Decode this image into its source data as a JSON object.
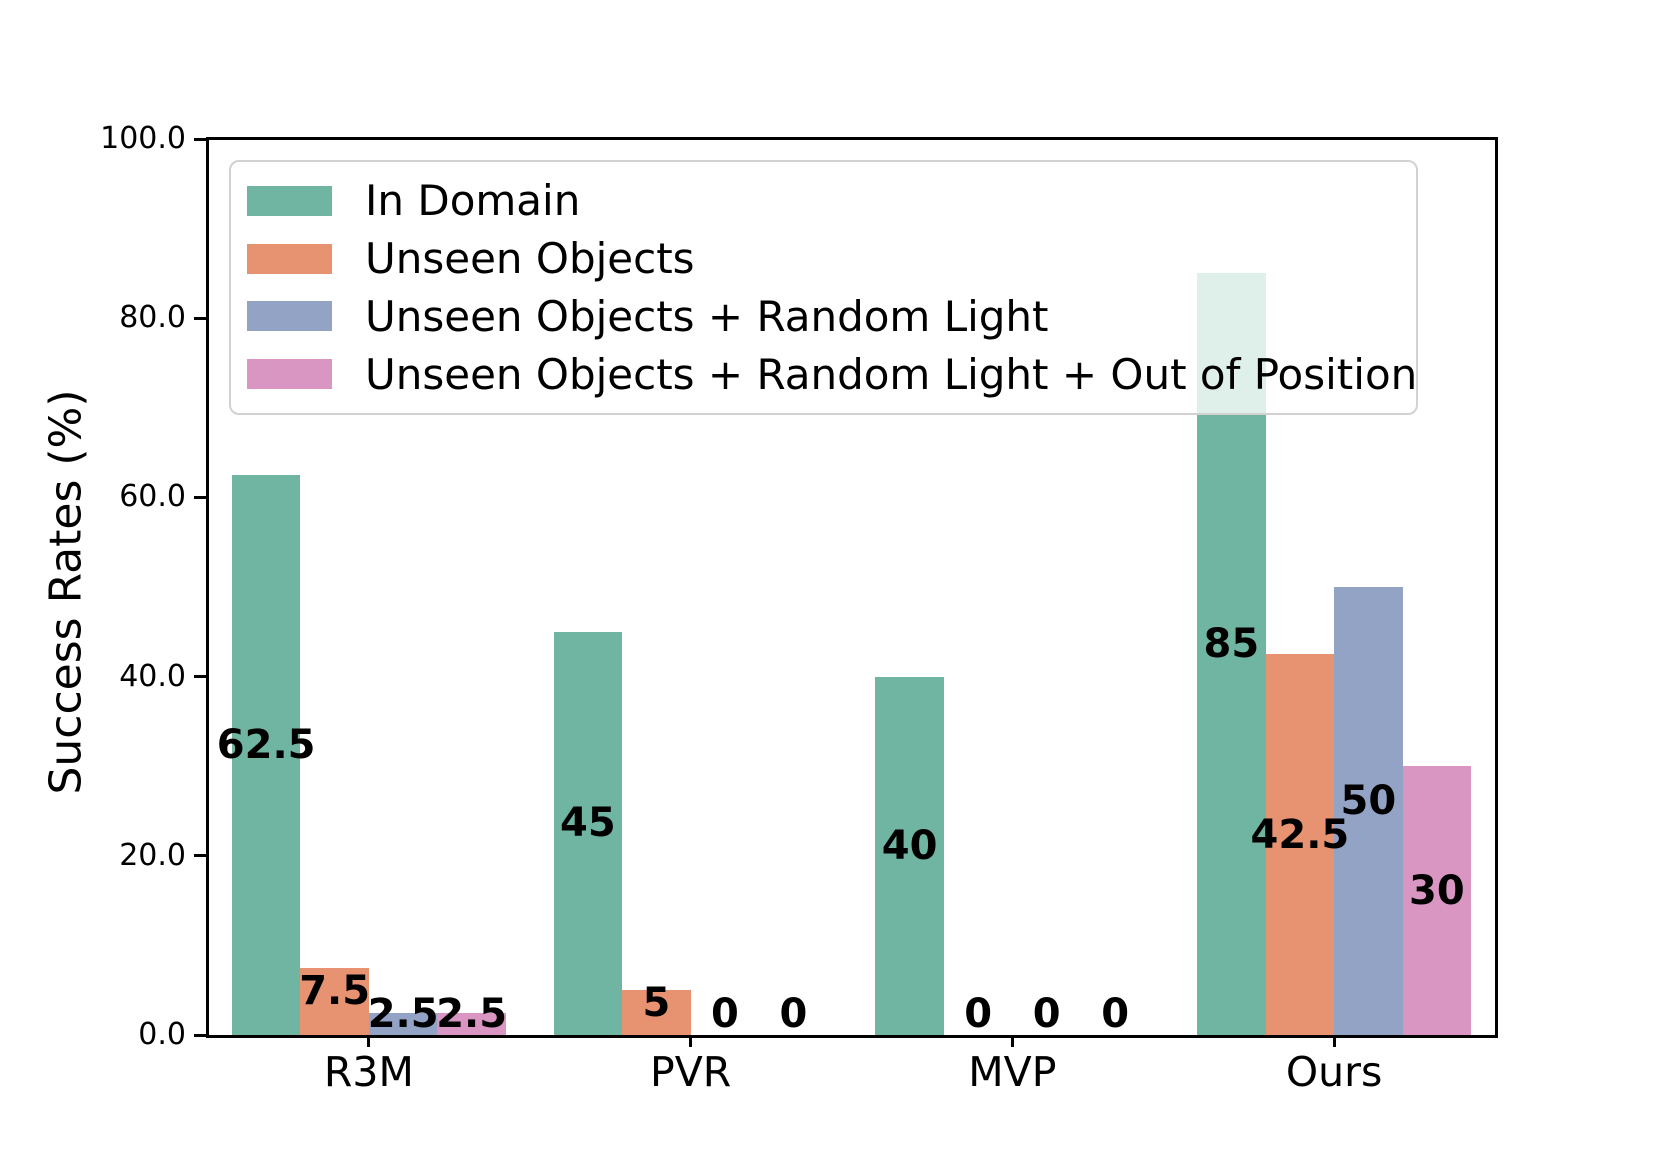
{
  "chart_data": {
    "type": "bar",
    "title": "",
    "xlabel": "",
    "ylabel": "Success Rates (%)",
    "ylim": [
      0,
      100
    ],
    "grid": false,
    "legend_position": "upper left",
    "categories": [
      "R3M",
      "PVR",
      "MVP",
      "Ours"
    ],
    "yticks": {
      "values": [
        0,
        20,
        40,
        60,
        80,
        100
      ],
      "labels": [
        "0.0",
        "20.0",
        "40.0",
        "60.0",
        "80.0",
        "100.0"
      ]
    },
    "series": [
      {
        "name": "In Domain",
        "color": "#6fb5a1",
        "values": [
          62.5,
          45,
          40,
          85
        ],
        "labels": [
          "62.5",
          "45",
          "40",
          "85"
        ]
      },
      {
        "name": "Unseen Objects",
        "color": "#e79371",
        "values": [
          7.5,
          5,
          0,
          42.5
        ],
        "labels": [
          "7.5",
          "5",
          "0",
          "42.5"
        ]
      },
      {
        "name": "Unseen Objects + Random Light",
        "color": "#93a3c6",
        "values": [
          2.5,
          0,
          0,
          50
        ],
        "labels": [
          "2.5",
          "0",
          "0",
          "50"
        ]
      },
      {
        "name": "Unseen Objects + Random Light + Out of Position",
        "color": "#d996c3",
        "values": [
          2.5,
          0,
          0,
          30
        ],
        "labels": [
          "2.5",
          "0",
          "0",
          "30"
        ]
      }
    ],
    "colors": {
      "spine": "#000000",
      "text": "#000000",
      "legend_border": "#d2d2d2"
    }
  }
}
